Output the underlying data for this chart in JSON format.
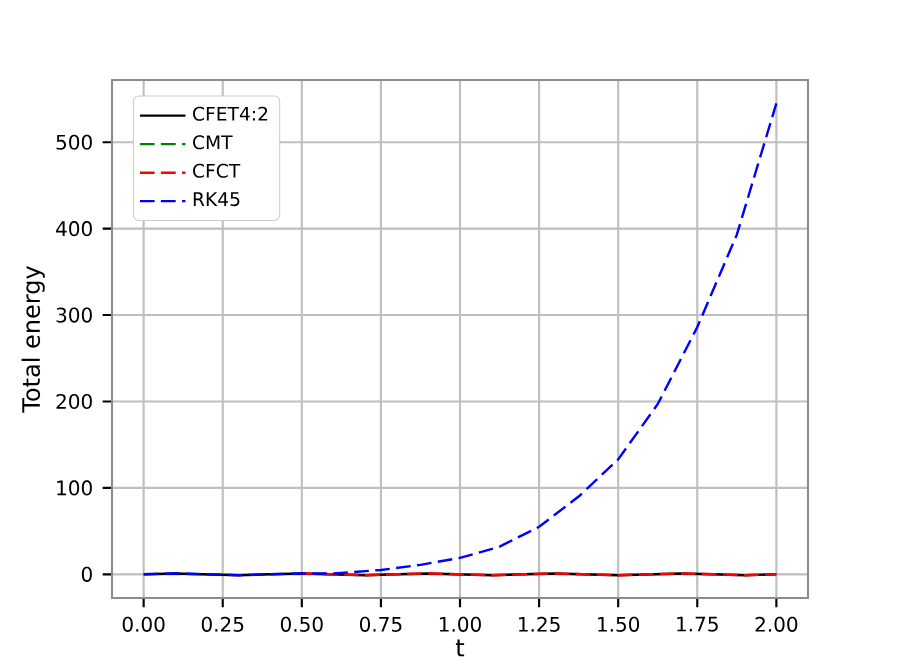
{
  "chart_data": {
    "type": "line",
    "xlabel": "t",
    "ylabel": "Total energy",
    "xlim": [
      -0.1,
      2.1
    ],
    "ylim": [
      -27.4,
      572
    ],
    "xticks": [
      {
        "value": 0,
        "label": "0.00"
      },
      {
        "value": 0.25,
        "label": "0.25"
      },
      {
        "value": 0.5,
        "label": "0.50"
      },
      {
        "value": 0.75,
        "label": "0.75"
      },
      {
        "value": 1,
        "label": "1.00"
      },
      {
        "value": 1.25,
        "label": "1.25"
      },
      {
        "value": 1.5,
        "label": "1.50"
      },
      {
        "value": 1.75,
        "label": "1.75"
      },
      {
        "value": 2,
        "label": "2.00"
      }
    ],
    "yticks": [
      0,
      100,
      200,
      300,
      400,
      500
    ],
    "grid": true,
    "legend": "top left",
    "marker": "none",
    "series": [
      {
        "name": "CFET4:2",
        "color": "#000000",
        "line_style": "solid",
        "x": [
          0,
          0.1,
          0.2,
          0.3,
          0.4,
          0.5,
          0.6,
          0.7,
          0.8,
          0.9,
          1.0,
          1.1,
          1.2,
          1.3,
          1.4,
          1.5,
          1.6,
          1.7,
          1.8,
          1.9,
          2.0
        ],
        "values": [
          0,
          1,
          0,
          -1,
          0,
          1,
          0,
          -1,
          0,
          1,
          0,
          -1,
          0,
          1,
          0,
          -1,
          0,
          1,
          0,
          -1,
          0
        ]
      },
      {
        "name": "CMT",
        "color": "#008000",
        "line_style": "dashed"
      },
      {
        "name": "CFCT",
        "color": "#ff0000",
        "line_style": "dashed",
        "x": [
          0.5,
          0.6,
          0.7,
          0.8,
          0.9,
          1.0,
          1.1,
          1.2,
          1.3,
          1.4,
          1.5,
          1.6,
          1.7,
          1.8,
          1.9,
          2.0
        ],
        "values": [
          1,
          0,
          -1,
          0,
          1,
          0,
          -1,
          0,
          1,
          0,
          -1,
          0,
          1,
          0,
          -1,
          0
        ]
      },
      {
        "name": "RK45",
        "color": "#0000ff",
        "line_style": "dashed",
        "x": [
          0,
          0.1,
          0.2,
          0.3,
          0.4,
          0.5,
          0.6,
          0.75,
          0.875,
          1.0,
          1.125,
          1.25,
          1.375,
          1.5,
          1.625,
          1.75,
          1.875,
          2.0
        ],
        "values": [
          0,
          1,
          0,
          -1,
          0,
          1,
          1,
          5,
          11,
          19,
          32,
          55,
          90,
          133,
          197,
          286,
          393,
          545
        ]
      }
    ]
  }
}
